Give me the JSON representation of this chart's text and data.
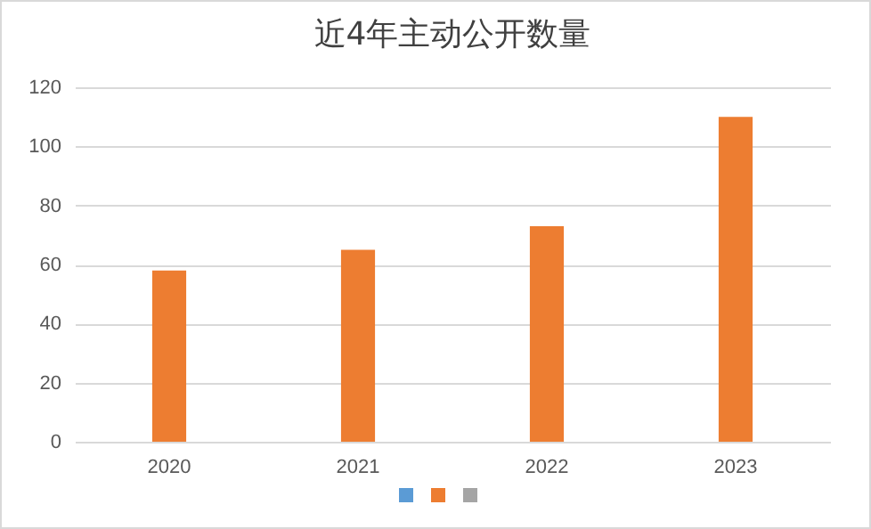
{
  "chart_data": {
    "type": "bar",
    "title": "近4年主动公开数量",
    "categories": [
      "2020",
      "2021",
      "2022",
      "2023"
    ],
    "series": [
      {
        "color": "#ed7d31",
        "values": [
          58,
          65,
          73,
          110
        ]
      }
    ],
    "ylim": [
      0,
      120
    ],
    "yticks": [
      0,
      20,
      40,
      60,
      80,
      100,
      120
    ],
    "grid": "y"
  }
}
